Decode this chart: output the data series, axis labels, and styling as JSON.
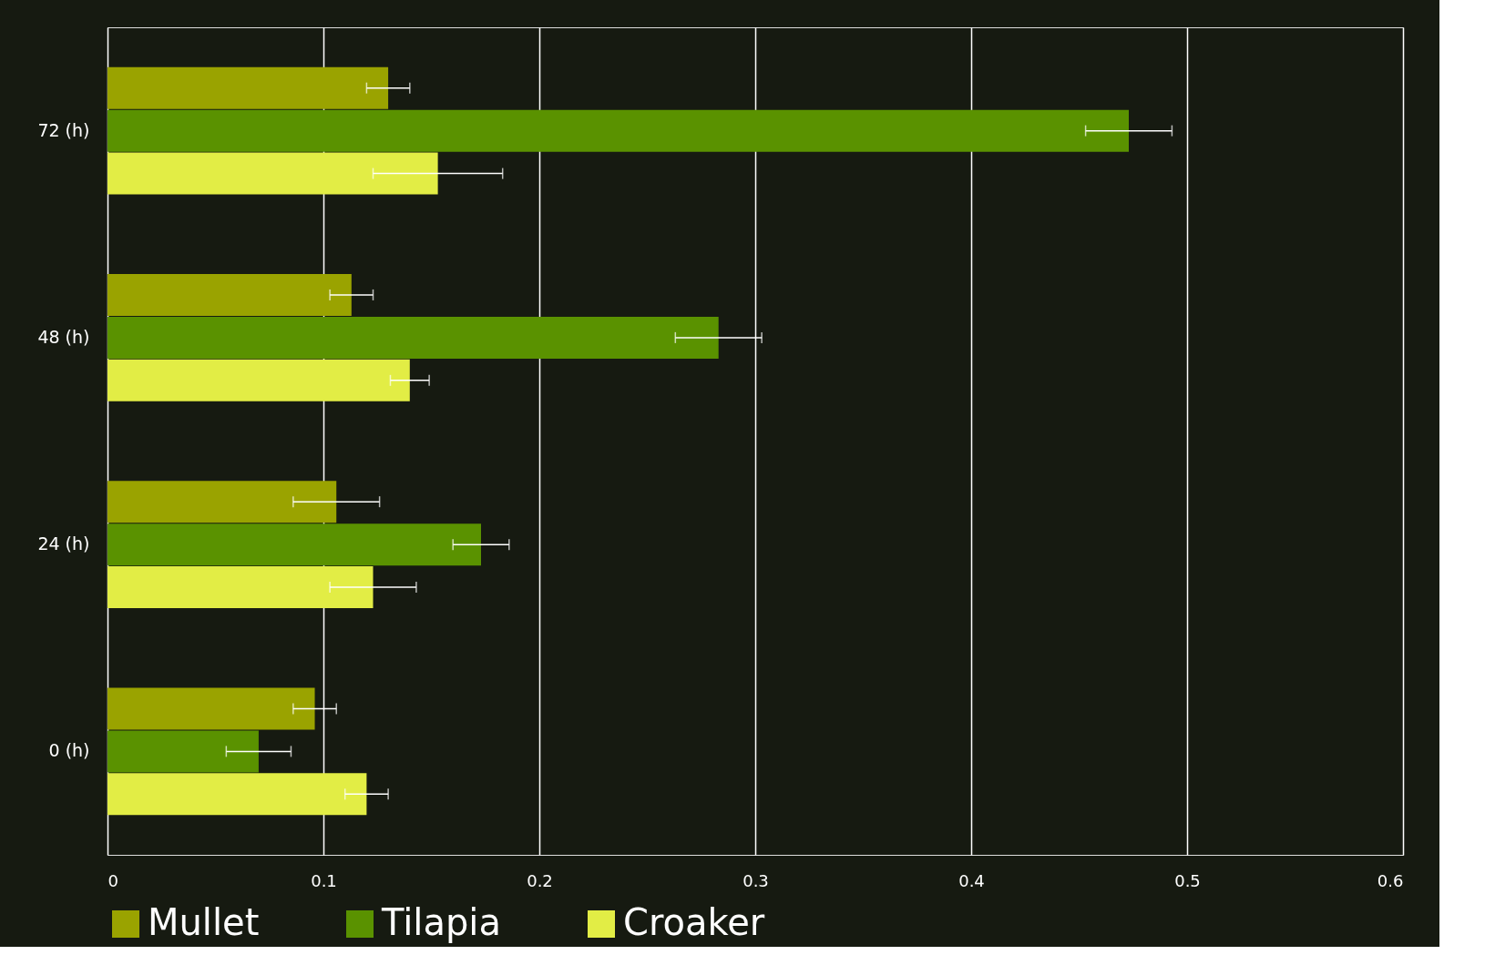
{
  "chart_data": {
    "type": "bar",
    "orientation": "horizontal",
    "categories": [
      "72 (h)",
      "48 (h)",
      "24 (h)",
      "0 (h)"
    ],
    "series": [
      {
        "name": "Mullet",
        "color": "#9aa300",
        "values": [
          0.13,
          0.113,
          0.106,
          0.096
        ],
        "errors": [
          0.01,
          0.01,
          0.02,
          0.01
        ]
      },
      {
        "name": "Tilapia",
        "color": "#5a9200",
        "values": [
          0.473,
          0.283,
          0.173,
          0.07
        ],
        "errors": [
          0.02,
          0.02,
          0.013,
          0.015
        ]
      },
      {
        "name": "Croaker",
        "color": "#e2ed45",
        "values": [
          0.153,
          0.14,
          0.123,
          0.12
        ],
        "errors": [
          0.03,
          0.009,
          0.02,
          0.01
        ]
      }
    ],
    "xlim": [
      0,
      0.6
    ],
    "xticks": [
      0,
      0.1,
      0.2,
      0.3,
      0.4,
      0.5,
      0.6
    ],
    "grid": "x",
    "legend": "bottom"
  }
}
